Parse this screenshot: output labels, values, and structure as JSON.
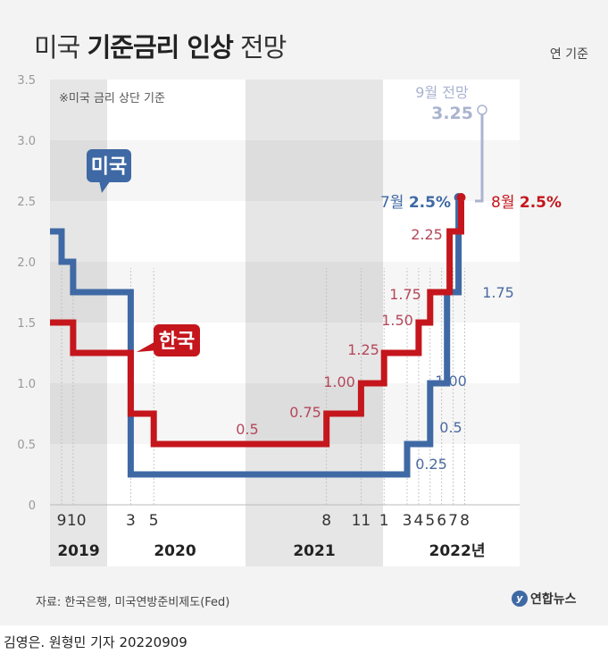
{
  "title": {
    "normal_1": "미국 ",
    "bold": "기준금리 인상",
    "normal_2": " 전망"
  },
  "unit": "연 기준",
  "note": "※미국 금리 상단 기준",
  "source": "자료: 한국은행, 미국연방준비제도(Fed)",
  "logo": "연합뉴스",
  "credit": "김영은. 원형민 기자 20220909",
  "colors": {
    "us": "#3f69a4",
    "korea": "#c4161c",
    "forecast": "#aab4d0",
    "korea_label": "#b4475a",
    "us_label": "#4a6aa0"
  },
  "chart_data": {
    "type": "line",
    "step": true,
    "ylim": [
      0,
      3.5
    ],
    "yticks": [
      "0",
      "0.5",
      "1.0",
      "1.5",
      "2.0",
      "2.5",
      "3.0",
      "3.5"
    ],
    "xticks": [
      {
        "date": "2019-09",
        "label": "9"
      },
      {
        "date": "2019-10",
        "label": "10"
      },
      {
        "date": "2020-03",
        "label": "3"
      },
      {
        "date": "2020-05",
        "label": "5"
      },
      {
        "date": "2021-08",
        "label": "8"
      },
      {
        "date": "2021-11",
        "label": "11"
      },
      {
        "date": "2022-01",
        "label": "1"
      },
      {
        "date": "2022-03",
        "label": "3"
      },
      {
        "date": "2022-04",
        "label": "4"
      },
      {
        "date": "2022-05",
        "label": "5"
      },
      {
        "date": "2022-06",
        "label": "6"
      },
      {
        "date": "2022-07",
        "label": "7"
      },
      {
        "date": "2022-08",
        "label": "8"
      }
    ],
    "years": [
      "2019",
      "2020",
      "2021",
      "2022년"
    ],
    "series": [
      {
        "name": "미국",
        "color": "#3f69a4",
        "points": [
          [
            "2019-08",
            2.25
          ],
          [
            "2019-09",
            2.0
          ],
          [
            "2019-10",
            1.75
          ],
          [
            "2020-03",
            0.25
          ],
          [
            "2022-03",
            0.5
          ],
          [
            "2022-05",
            1.0
          ],
          [
            "2022-06",
            1.75
          ],
          [
            "2022-07",
            2.5
          ]
        ],
        "labels": [
          "0.25",
          "0.5",
          "1.00",
          "1.75"
        ],
        "end_label": {
          "month": "7월",
          "value": "2.5%"
        }
      },
      {
        "name": "한국",
        "color": "#c4161c",
        "points": [
          [
            "2019-08",
            1.5
          ],
          [
            "2019-10",
            1.25
          ],
          [
            "2020-03",
            0.75
          ],
          [
            "2020-05",
            0.5
          ],
          [
            "2021-08",
            0.75
          ],
          [
            "2021-11",
            1.0
          ],
          [
            "2022-01",
            1.25
          ],
          [
            "2022-04",
            1.5
          ],
          [
            "2022-05",
            1.75
          ],
          [
            "2022-07",
            2.25
          ],
          [
            "2022-08",
            2.5
          ]
        ],
        "labels": [
          "0.5",
          "0.75",
          "1.00",
          "1.25",
          "1.50",
          "1.75",
          "2.25"
        ],
        "end_label": {
          "month": "8월",
          "value": "2.5%"
        }
      }
    ],
    "forecast": {
      "date": "2022-09",
      "value": 3.25,
      "label": "9월 전망",
      "value_label": "3.25"
    }
  }
}
